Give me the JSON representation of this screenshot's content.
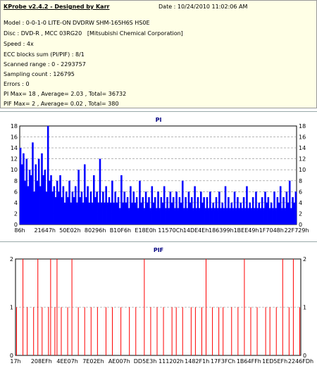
{
  "info": {
    "app_title": "KProbe v2.4.2 - Designed by Karr",
    "date": "Date : 10/24/2010 11:02:06 AM",
    "model": "Model : 0-0-1-0 LITE-ON DVDRW SHM-165H6S HS0E",
    "disc": "Disc : DVD-R , MCC 03RG20   [Mitsubishi Chemical Corporation]",
    "speed": "Speed : 4x",
    "ecc": "ECC blocks sum (PI/PIF) : 8/1",
    "range": "Scanned range : 0 - 2293757",
    "sampling": "Sampling count : 126795",
    "errors": "Errors : 0",
    "pi_stats": "PI Max= 18 , Average= 2.03 , Total= 36732",
    "pif_stats": "PIF Max= 2 , Average= 0.02 , Total= 380"
  },
  "chart_data": [
    {
      "type": "area",
      "title": "PI",
      "ylim": [
        0,
        18
      ],
      "yticks": [
        "0",
        "2",
        "4",
        "6",
        "8",
        "10",
        "12",
        "14",
        "16",
        "18"
      ],
      "xtick_labels": [
        "86h",
        "21647h",
        "50E02h",
        "80296h",
        "B10F6h",
        "E18E0h",
        "11570Ch",
        "14DE4Eh",
        "186399h",
        "1BEE49h",
        "1F7048h",
        "22F729h"
      ],
      "color": "#0000ff",
      "values": [
        14,
        11,
        13,
        8,
        12,
        7,
        10,
        9,
        15,
        6,
        11,
        8,
        12,
        7,
        13,
        9,
        10,
        6,
        18,
        8,
        9,
        6,
        7,
        5,
        8,
        6,
        9,
        5,
        7,
        4,
        6,
        5,
        8,
        4,
        6,
        5,
        7,
        4,
        10,
        5,
        6,
        4,
        11,
        5,
        7,
        4,
        6,
        4,
        9,
        5,
        6,
        4,
        12,
        4,
        6,
        4,
        7,
        4,
        5,
        4,
        8,
        4,
        6,
        4,
        5,
        3,
        9,
        4,
        6,
        4,
        5,
        3,
        7,
        4,
        6,
        4,
        5,
        3,
        8,
        4,
        5,
        3,
        6,
        4,
        5,
        3,
        7,
        4,
        5,
        3,
        6,
        3,
        5,
        4,
        7,
        3,
        5,
        3,
        6,
        4,
        5,
        3,
        6,
        3,
        5,
        4,
        8,
        3,
        5,
        3,
        6,
        4,
        5,
        3,
        7,
        3,
        5,
        3,
        6,
        4,
        5,
        3,
        5,
        3,
        6,
        3,
        4,
        3,
        5,
        3,
        6,
        3,
        4,
        3,
        7,
        3,
        5,
        3,
        4,
        3,
        6,
        3,
        5,
        3,
        4,
        3,
        5,
        3,
        7,
        3,
        4,
        3,
        5,
        3,
        6,
        3,
        4,
        3,
        5,
        3,
        6,
        4,
        5,
        3,
        4,
        3,
        6,
        3,
        5,
        4,
        7,
        3,
        5,
        3,
        6,
        4,
        8,
        3,
        5,
        4,
        6
      ]
    },
    {
      "type": "bar",
      "title": "PIF",
      "ylim": [
        0,
        2
      ],
      "yticks": [
        "0",
        "1",
        "2"
      ],
      "xtick_labels": [
        "17h",
        "208EFh",
        "4EE07h",
        "7E02Eh",
        "AE007h",
        "DD5E3h",
        "111202h",
        "1482F1h",
        "17F3FCh",
        "1B64FFh",
        "1ED5EFh",
        "2246FDh"
      ],
      "color": "#ff0000",
      "values": [
        1,
        0,
        0,
        2,
        0,
        1,
        0,
        0,
        1,
        0,
        2,
        0,
        1,
        0,
        0,
        1,
        2,
        0,
        1,
        2,
        0,
        1,
        0,
        0,
        1,
        0,
        2,
        0,
        0,
        1,
        0,
        0,
        1,
        0,
        0,
        1,
        0,
        0,
        1,
        0,
        0,
        0,
        1,
        0,
        0,
        1,
        0,
        0,
        0,
        1,
        0,
        0,
        0,
        1,
        0,
        0,
        1,
        0,
        0,
        0,
        2,
        0,
        0,
        1,
        0,
        0,
        1,
        0,
        0,
        1,
        0,
        0,
        0,
        1,
        0,
        1,
        0,
        0,
        1,
        0,
        0,
        0,
        1,
        0,
        1,
        0,
        0,
        1,
        0,
        2,
        0,
        0,
        1,
        0,
        0,
        1,
        0,
        1,
        0,
        0,
        0,
        1,
        0,
        0,
        1,
        0,
        0,
        2,
        0,
        0,
        1,
        0,
        0,
        1,
        0,
        0,
        0,
        1,
        0,
        1,
        0,
        0,
        1,
        0,
        0,
        2,
        0,
        0,
        1,
        0,
        2,
        0,
        0,
        1
      ]
    }
  ]
}
